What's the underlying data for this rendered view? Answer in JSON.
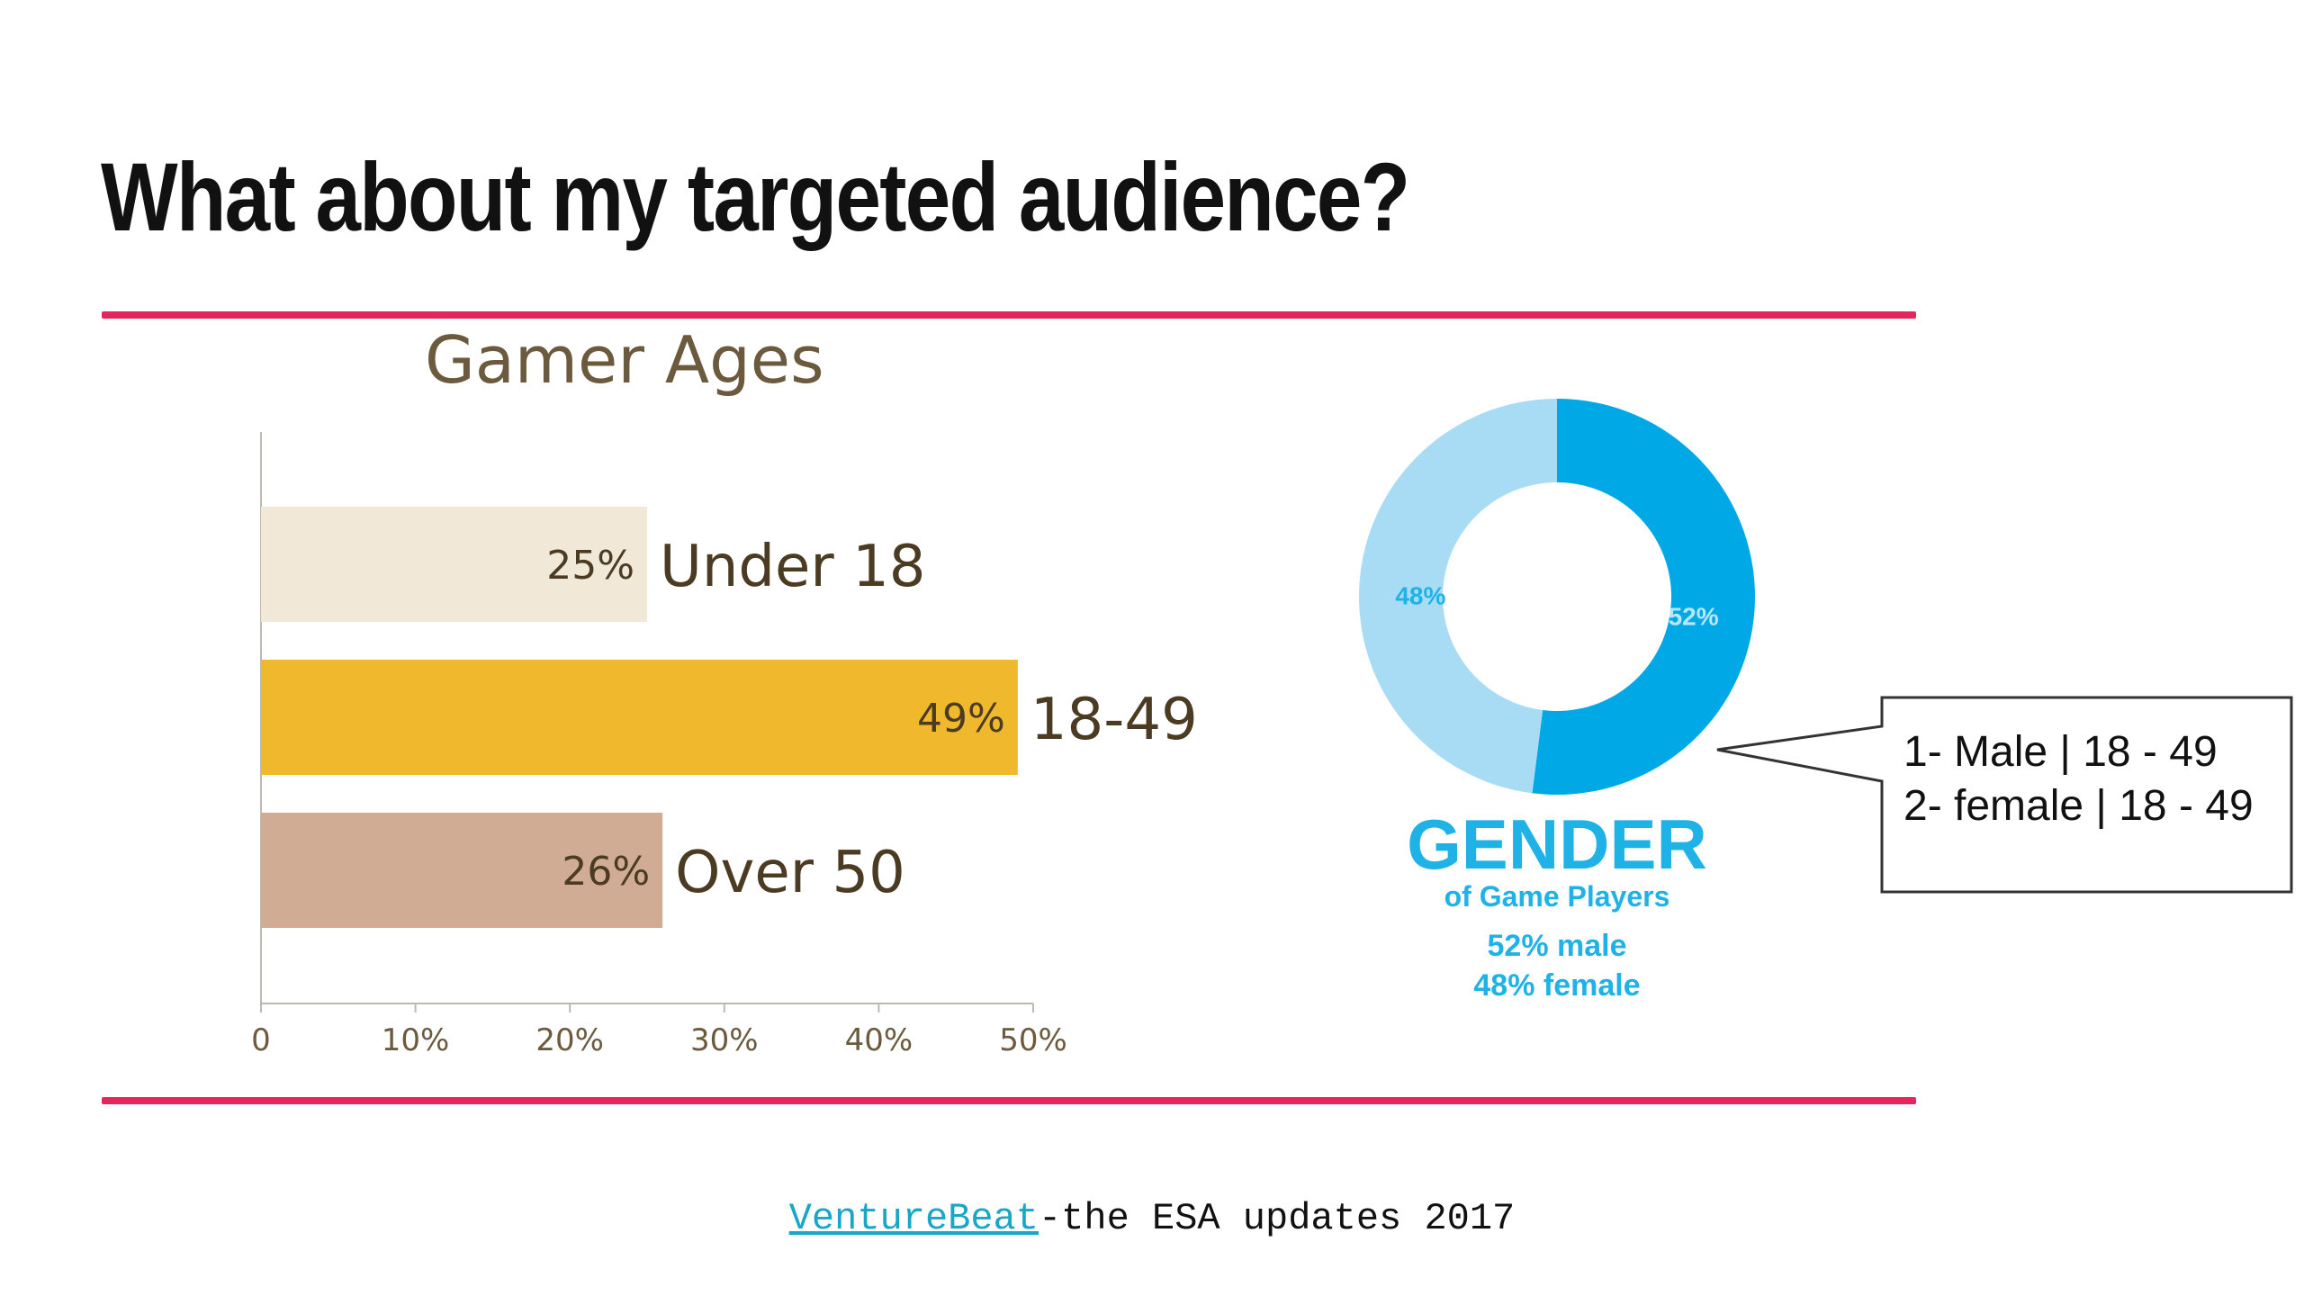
{
  "slide": {
    "title": "What about my targeted audience?",
    "source_link": "VentureBeat",
    "source_rest": "-the ESA updates 2017"
  },
  "callout": {
    "line1": "1- Male | 18 - 49",
    "line2": "2- female | 18 - 49"
  },
  "colors": {
    "rule": "#e6245e",
    "axis_text": "#6b5a3e",
    "label_text": "#4a3b22",
    "female": "#a8dcf4",
    "male": "#00a9e6",
    "gender_text": "#1fb2e6"
  },
  "chart_data": [
    {
      "type": "bar",
      "orientation": "horizontal",
      "title": "Gamer Ages",
      "categories": [
        "Under 18",
        "18-49",
        "Over 50"
      ],
      "values": [
        25,
        49,
        26
      ],
      "value_labels": [
        "25%",
        "49%",
        "26%"
      ],
      "colors": [
        "#f2e8d8",
        "#f0b92d",
        "#cfac93"
      ],
      "xlim": [
        0,
        50
      ],
      "xticks": [
        "0",
        "10%",
        "20%",
        "30%",
        "40%",
        "50%"
      ],
      "xlabel": "",
      "ylabel": "",
      "grid": false
    },
    {
      "type": "pie",
      "donut": true,
      "categories": [
        "male",
        "female"
      ],
      "values": [
        52,
        48
      ],
      "value_labels": [
        "52%",
        "48%"
      ],
      "colors": [
        "#00a9e6",
        "#a8dcf4"
      ],
      "caption_title": "GENDER",
      "caption_subtitle": "of Game Players",
      "caption_lines": [
        "52% male",
        "48% female"
      ]
    }
  ]
}
